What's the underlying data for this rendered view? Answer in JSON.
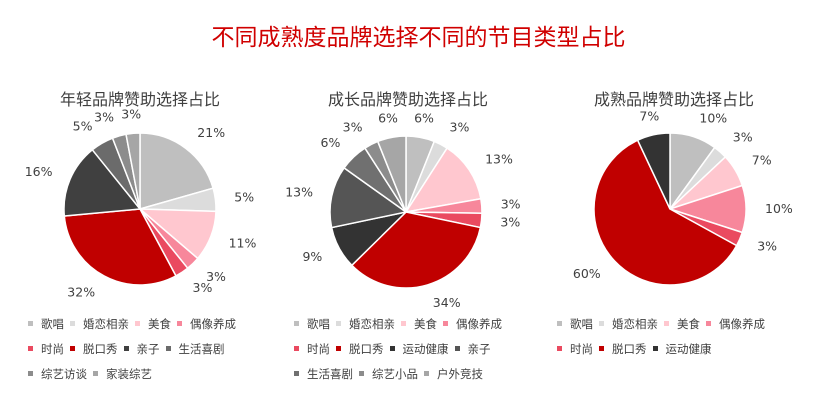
{
  "title": "不同成熟度品牌选择不同的节目类型占比",
  "chart_data": [
    {
      "type": "pie",
      "title": "年轻品牌赞助选择占比",
      "slices": [
        {
          "label": "歌唱",
          "value": 21,
          "display": "21%",
          "color": "#bfbfbf"
        },
        {
          "label": "婚恋相亲",
          "value": 5,
          "display": "5%",
          "color": "#dcdcdc"
        },
        {
          "label": "美食",
          "value": 11,
          "display": "11%",
          "color": "#ffc7cf"
        },
        {
          "label": "偶像养成",
          "value": 3,
          "display": "3%",
          "color": "#f7879b"
        },
        {
          "label": "时尚",
          "value": 3,
          "display": "3%",
          "color": "#ea4a60"
        },
        {
          "label": "脱口秀",
          "value": 32,
          "display": "32%",
          "color": "#c00000"
        },
        {
          "label": "亲子",
          "value": 16,
          "display": "16%",
          "color": "#404040"
        },
        {
          "label": "生活喜剧",
          "value": 5,
          "display": "5%",
          "color": "#6b6b6b"
        },
        {
          "label": "综艺访谈",
          "value": 3,
          "display": "3%",
          "color": "#8c8c8c"
        },
        {
          "label": "家装综艺",
          "value": 3,
          "display": "3%",
          "color": "#a6a6a6"
        }
      ]
    },
    {
      "type": "pie",
      "title": "成长品牌赞助选择占比",
      "slices": [
        {
          "label": "歌唱",
          "value": 6,
          "display": "6%",
          "color": "#bfbfbf"
        },
        {
          "label": "婚恋相亲",
          "value": 3,
          "display": "3%",
          "color": "#dcdcdc"
        },
        {
          "label": "美食",
          "value": 13,
          "display": "13%",
          "color": "#ffc7cf"
        },
        {
          "label": "偶像养成",
          "value": 3,
          "display": "3%",
          "color": "#f7879b"
        },
        {
          "label": "时尚",
          "value": 3,
          "display": "3%",
          "color": "#ea4a60"
        },
        {
          "label": "脱口秀",
          "value": 34,
          "display": "34%",
          "color": "#c00000"
        },
        {
          "label": "运动健康",
          "value": 9,
          "display": "9%",
          "color": "#333333"
        },
        {
          "label": "亲子",
          "value": 13,
          "display": "13%",
          "color": "#555555"
        },
        {
          "label": "生活喜剧",
          "value": 6,
          "display": "6%",
          "color": "#707070"
        },
        {
          "label": "综艺小品",
          "value": 3,
          "display": "3%",
          "color": "#8c8c8c"
        },
        {
          "label": "户外竞技",
          "value": 6,
          "display": "6%",
          "color": "#a6a6a6"
        }
      ]
    },
    {
      "type": "pie",
      "title": "成熟品牌赞助选择占比",
      "slices": [
        {
          "label": "歌唱",
          "value": 10,
          "display": "10%",
          "color": "#bfbfbf"
        },
        {
          "label": "婚恋相亲",
          "value": 3,
          "display": "3%",
          "color": "#dcdcdc"
        },
        {
          "label": "美食",
          "value": 7,
          "display": "7%",
          "color": "#ffc7cf"
        },
        {
          "label": "偶像养成",
          "value": 10,
          "display": "10%",
          "color": "#f7879b"
        },
        {
          "label": "时尚",
          "value": 3,
          "display": "3%",
          "color": "#ea4a60"
        },
        {
          "label": "脱口秀",
          "value": 60,
          "display": "60%",
          "color": "#c00000"
        },
        {
          "label": "运动健康",
          "value": 7,
          "display": "7%",
          "color": "#333333"
        }
      ]
    }
  ]
}
